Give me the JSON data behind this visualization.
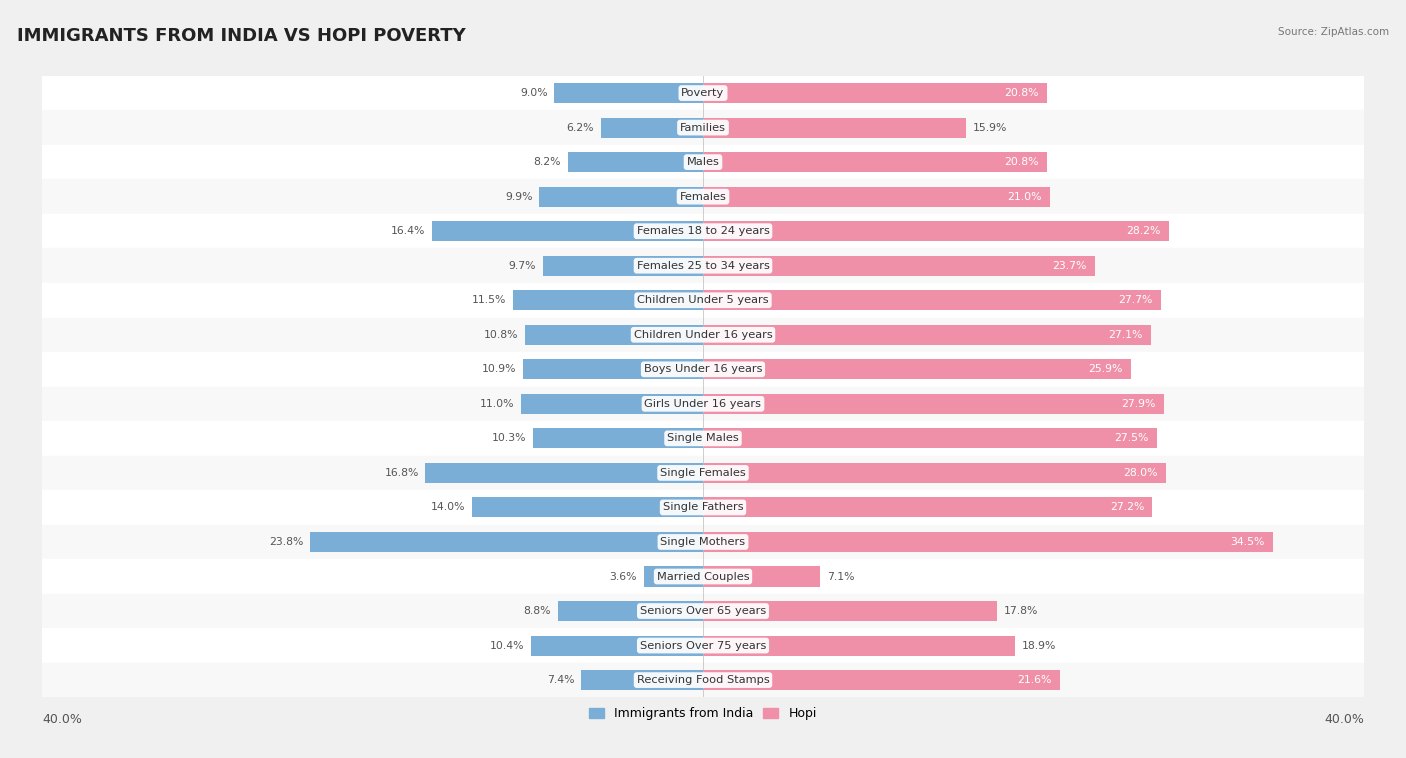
{
  "title": "IMMIGRANTS FROM INDIA VS HOPI POVERTY",
  "source": "Source: ZipAtlas.com",
  "categories": [
    "Poverty",
    "Families",
    "Males",
    "Females",
    "Females 18 to 24 years",
    "Females 25 to 34 years",
    "Children Under 5 years",
    "Children Under 16 years",
    "Boys Under 16 years",
    "Girls Under 16 years",
    "Single Males",
    "Single Females",
    "Single Fathers",
    "Single Mothers",
    "Married Couples",
    "Seniors Over 65 years",
    "Seniors Over 75 years",
    "Receiving Food Stamps"
  ],
  "india_values": [
    9.0,
    6.2,
    8.2,
    9.9,
    16.4,
    9.7,
    11.5,
    10.8,
    10.9,
    11.0,
    10.3,
    16.8,
    14.0,
    23.8,
    3.6,
    8.8,
    10.4,
    7.4
  ],
  "hopi_values": [
    20.8,
    15.9,
    20.8,
    21.0,
    28.2,
    23.7,
    27.7,
    27.1,
    25.9,
    27.9,
    27.5,
    28.0,
    27.2,
    34.5,
    7.1,
    17.8,
    18.9,
    21.6
  ],
  "india_color": "#7aaed6",
  "hopi_color": "#f090a8",
  "india_label": "Immigrants from India",
  "hopi_label": "Hopi",
  "axis_max": 40.0,
  "bar_height": 0.58,
  "bg_color": "#f0f0f0",
  "row_bg_light": "#f8f8f8",
  "row_bg_white": "#ffffff",
  "title_fontsize": 13,
  "label_fontsize": 8.2,
  "value_fontsize": 7.8,
  "hopi_white_threshold": 20.0
}
